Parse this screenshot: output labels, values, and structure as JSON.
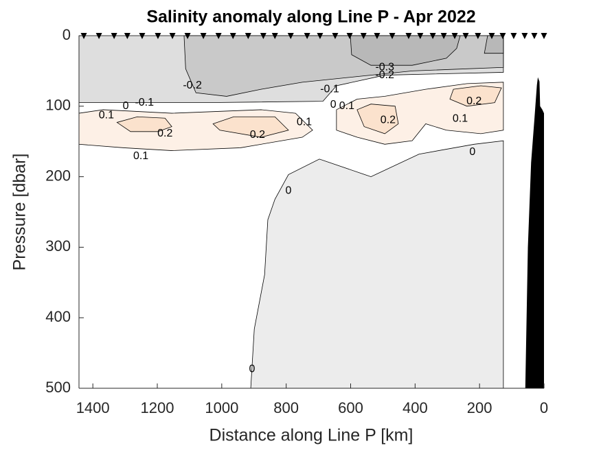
{
  "chart_data": {
    "type": "contour",
    "title": "Salinity anomaly along Line P - Apr 2022",
    "xlabel": "Distance along Line P [km]",
    "ylabel": "Pressure [dbar]",
    "xlim": [
      1443,
      0
    ],
    "xticks": [
      1400,
      1200,
      1000,
      800,
      600,
      400,
      200,
      0
    ],
    "ylim": [
      0,
      500
    ],
    "y_reversed": true,
    "yticks": [
      0,
      100,
      200,
      300,
      400,
      500
    ],
    "data_extent": [
      1443,
      126
    ],
    "stations": [
      1428,
      1381,
      1334,
      1293,
      1247,
      1198,
      1153,
      1106,
      1057,
      1010,
      965,
      918,
      871,
      835,
      786,
      735,
      695,
      648,
      603,
      560,
      518,
      471,
      420,
      384,
      345,
      311,
      277,
      243,
      205,
      162,
      128,
      94,
      60,
      30,
      0
    ],
    "regions": [
      {
        "level": -0.05,
        "color": "#ececec",
        "points": [
          [
            910,
            500
          ],
          [
            899,
            416
          ],
          [
            867,
            339
          ],
          [
            857,
            261
          ],
          [
            835,
            232
          ],
          [
            793,
            197
          ],
          [
            697,
            175
          ],
          [
            537,
            200
          ],
          [
            388,
            168
          ],
          [
            217,
            154
          ],
          [
            126,
            149
          ],
          [
            126,
            500
          ]
        ]
      },
      {
        "level": -0.1,
        "color": "#dedede",
        "points": [
          [
            1443,
            0
          ],
          [
            126,
            0
          ],
          [
            126,
            52
          ],
          [
            494,
            56
          ],
          [
            644,
            71
          ],
          [
            686,
            93
          ],
          [
            1048,
            95
          ],
          [
            1443,
            95
          ]
        ]
      },
      {
        "level": -0.2,
        "color": "#c9c9c9",
        "points": [
          [
            1117,
            0
          ],
          [
            1112,
            47
          ],
          [
            1080,
            81
          ],
          [
            985,
            86
          ],
          [
            878,
            76
          ],
          [
            750,
            66
          ],
          [
            580,
            58
          ],
          [
            409,
            50
          ],
          [
            126,
            45
          ],
          [
            126,
            0
          ]
        ]
      },
      {
        "level": -0.3,
        "color": "#b8b8b8",
        "points": [
          [
            601,
            0
          ],
          [
            597,
            27
          ],
          [
            537,
            42
          ],
          [
            409,
            42
          ],
          [
            303,
            32
          ],
          [
            271,
            18
          ],
          [
            260,
            0
          ]
        ]
      },
      {
        "level": -0.3,
        "color": "#b8b8b8",
        "points": [
          [
            175,
            0
          ],
          [
            185,
            25
          ],
          [
            126,
            25
          ],
          [
            126,
            0
          ]
        ]
      },
      {
        "level": 0.1,
        "color": "#fdf0e6",
        "points": [
          [
            1443,
            110
          ],
          [
            1368,
            105
          ],
          [
            1155,
            110
          ],
          [
            878,
            105
          ],
          [
            771,
            110
          ],
          [
            718,
            134
          ],
          [
            750,
            144
          ],
          [
            942,
            159
          ],
          [
            1155,
            163
          ],
          [
            1304,
            159
          ],
          [
            1443,
            154
          ]
        ]
      },
      {
        "level": 0.1,
        "color": "#fdf0e6",
        "points": [
          [
            644,
            105
          ],
          [
            580,
            90
          ],
          [
            494,
            86
          ],
          [
            367,
            76
          ],
          [
            239,
            68
          ],
          [
            126,
            66
          ],
          [
            126,
            134
          ],
          [
            196,
            139
          ],
          [
            303,
            134
          ],
          [
            367,
            125
          ],
          [
            409,
            149
          ],
          [
            494,
            154
          ],
          [
            580,
            144
          ],
          [
            644,
            134
          ]
        ]
      },
      {
        "level": 0.2,
        "color": "#fbe2cd",
        "points": [
          [
            1325,
            123
          ],
          [
            1262,
            115
          ],
          [
            1176,
            117
          ],
          [
            1155,
            129
          ],
          [
            1198,
            136
          ],
          [
            1283,
            136
          ]
        ]
      },
      {
        "level": 0.2,
        "color": "#fbe2cd",
        "points": [
          [
            1027,
            125
          ],
          [
            963,
            115
          ],
          [
            835,
            115
          ],
          [
            793,
            134
          ],
          [
            878,
            144
          ],
          [
            1006,
            134
          ]
        ]
      },
      {
        "level": 0.2,
        "color": "#fbe2cd",
        "points": [
          [
            580,
            105
          ],
          [
            537,
            97
          ],
          [
            462,
            100
          ],
          [
            452,
            125
          ],
          [
            494,
            139
          ],
          [
            558,
            129
          ]
        ]
      },
      {
        "level": 0.2,
        "color": "#fbe2cd",
        "points": [
          [
            281,
            76
          ],
          [
            196,
            71
          ],
          [
            132,
            74
          ],
          [
            153,
            95
          ],
          [
            239,
            100
          ],
          [
            292,
            90
          ]
        ]
      }
    ],
    "contour_labels": [
      {
        "level": -0.2,
        "x": 1091,
        "y": 71
      },
      {
        "level": 0.1,
        "x": 1358,
        "y": 113
      },
      {
        "level": 0,
        "x": 1298,
        "y": 100
      },
      {
        "level": -0.1,
        "x": 1240,
        "y": 95
      },
      {
        "level": 0.2,
        "x": 1176,
        "y": 139
      },
      {
        "level": 0.1,
        "x": 1251,
        "y": 171
      },
      {
        "level": 0.2,
        "x": 889,
        "y": 141
      },
      {
        "level": 0.1,
        "x": 744,
        "y": 123
      },
      {
        "level": -0.1,
        "x": 665,
        "y": 76
      },
      {
        "level": 0,
        "x": 654,
        "y": 98
      },
      {
        "level": 0.1,
        "x": 612,
        "y": 100
      },
      {
        "level": 0.2,
        "x": 484,
        "y": 120
      },
      {
        "level": -0.3,
        "x": 494,
        "y": 45
      },
      {
        "level": -0.2,
        "x": 494,
        "y": 56
      },
      {
        "level": 0.2,
        "x": 217,
        "y": 93
      },
      {
        "level": 0.1,
        "x": 260,
        "y": 118
      },
      {
        "level": 0,
        "x": 222,
        "y": 165
      },
      {
        "level": 0,
        "x": 793,
        "y": 220
      },
      {
        "level": 0,
        "x": 906,
        "y": 473
      }
    ],
    "bathymetry": {
      "color": "#000000",
      "points": [
        [
          58,
          500
        ],
        [
          50,
          300
        ],
        [
          40,
          180
        ],
        [
          30,
          120
        ],
        [
          22,
          70
        ],
        [
          19,
          59
        ],
        [
          14,
          65
        ],
        [
          12,
          100
        ],
        [
          5,
          105
        ],
        [
          0,
          110
        ],
        [
          0,
          500
        ]
      ]
    }
  }
}
